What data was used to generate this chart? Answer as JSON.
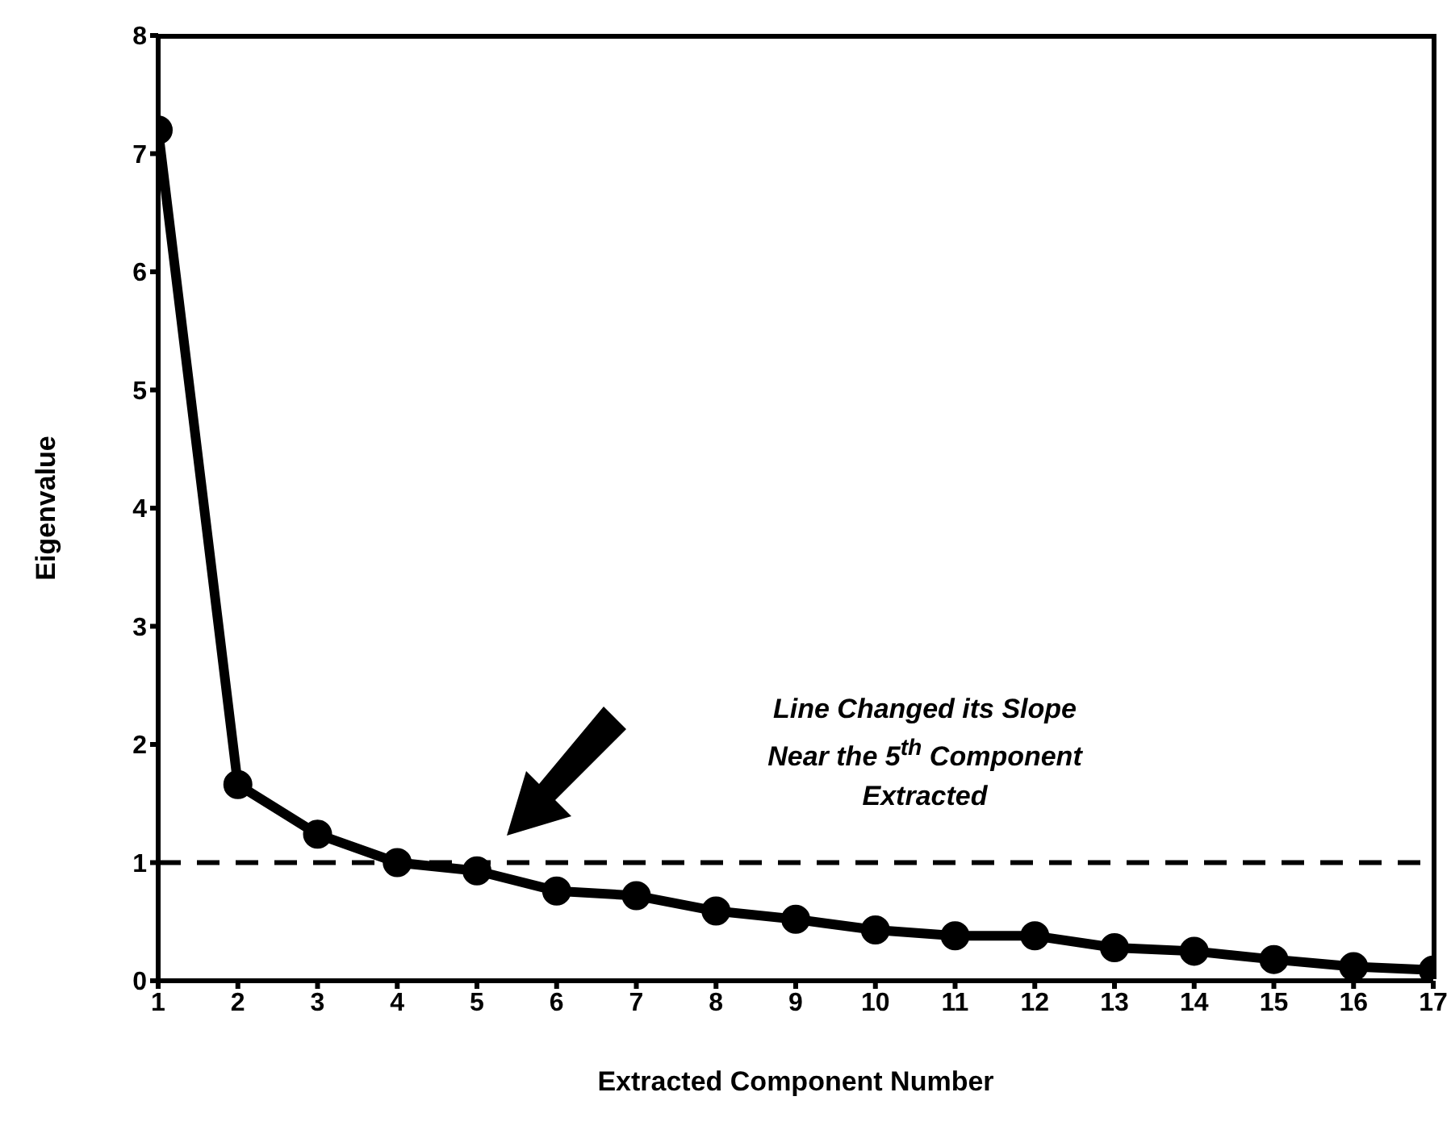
{
  "chart_data": {
    "type": "line",
    "xlabel": "Extracted Component Number",
    "ylabel": "Eigenvalue",
    "x": [
      1,
      2,
      3,
      4,
      5,
      6,
      7,
      8,
      9,
      10,
      11,
      12,
      13,
      14,
      15,
      16,
      17
    ],
    "series": [
      {
        "color": "#000000",
        "values": [
          7.2,
          1.66,
          1.24,
          1.0,
          0.93,
          0.76,
          0.72,
          0.59,
          0.52,
          0.43,
          0.38,
          0.38,
          0.28,
          0.25,
          0.18,
          0.12,
          0.09
        ]
      }
    ],
    "xlim": [
      1,
      17
    ],
    "xticks": [
      1,
      2,
      3,
      4,
      5,
      6,
      7,
      8,
      9,
      10,
      11,
      12,
      13,
      14,
      15,
      16,
      17
    ],
    "ylim": [
      0,
      8
    ],
    "yticks": [
      0,
      1,
      2,
      3,
      4,
      5,
      6,
      7,
      8
    ],
    "ref_lines": [
      {
        "axis": "y",
        "value": 1,
        "color": "#000000",
        "line_style": "dashed"
      }
    ],
    "annotations": [
      "Line Changed its Slope Near the 5$^{th}$ Component Extracted"
    ],
    "grid": false,
    "legend": false,
    "marker": "circle",
    "line_style": "solid"
  }
}
